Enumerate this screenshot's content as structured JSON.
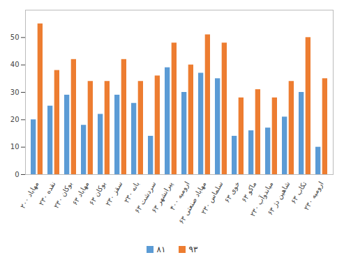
{
  "chart_data": {
    "type": "bar",
    "categories": [
      "مهاباد ۲۰۰",
      "نقده ۲۳۰",
      "بوکان ۲۳۰",
      "مهاباد ۶۳",
      "بوکان ۶۳",
      "سقز ۲۳۰",
      "بانه ۲۳۰",
      "سردشت ۶۳",
      "پیرانشهر ۶۳",
      "ارومیه ۴۰۰",
      "مهاباد صنعتی ۶۳",
      "سلماس ۲۳۰",
      "خوی ۶۳",
      "ماکو ۶۳",
      "میاندوآب ۲۳۰",
      "شاهین دژ ۶۳",
      "تکاب ۶۳",
      "ارومیه ۲۳۰"
    ],
    "series": [
      {
        "name": "۸۱",
        "color": "#5b9bd5",
        "values": [
          20,
          25,
          29,
          18,
          22,
          29,
          26,
          14,
          39,
          30,
          37,
          35,
          14,
          16,
          17,
          21,
          30,
          10
        ]
      },
      {
        "name": "۹۳",
        "color": "#ed7d31",
        "values": [
          55,
          38,
          42,
          34,
          34,
          42,
          34,
          36,
          48,
          40,
          51,
          48,
          28,
          31,
          28,
          34,
          50,
          35
        ]
      }
    ],
    "ylim": [
      0,
      60
    ],
    "yticks": [
      0,
      10,
      20,
      30,
      40,
      50
    ],
    "grid": false,
    "legend": "bottom"
  }
}
